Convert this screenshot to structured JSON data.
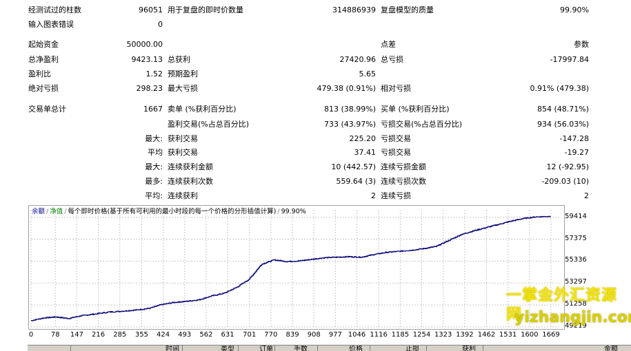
{
  "stats": {
    "bars_tested_label": "经测试过的柱数",
    "bars_tested_value": "96051",
    "ticks_label": "用于复盘的即时价数量",
    "ticks_value": "314886939",
    "quality_label": "复盘模型的质量",
    "quality_value": "99.90%",
    "mismatch_label": "输入图表错误",
    "mismatch_value": "0",
    "initial_deposit_label": "起始资金",
    "initial_deposit_value": "50000.00",
    "spread_label": "点差",
    "spread_value": "参数",
    "net_profit_label": "总净盈利",
    "net_profit_value": "9423.13",
    "gross_profit_label": "总获利",
    "gross_profit_value": "27420.96",
    "gross_loss_label": "总亏损",
    "gross_loss_value": "-17997.84",
    "profit_factor_label": "盈利比",
    "profit_factor_value": "1.52",
    "expected_payoff_label": "预期盈利",
    "expected_payoff_value": "5.65",
    "abs_drawdown_label": "绝对亏损",
    "abs_drawdown_value": "298.23",
    "max_drawdown_label": "最大亏损",
    "max_drawdown_value": "479.38 (0.91%)",
    "rel_drawdown_label": "相对亏损",
    "rel_drawdown_value": "0.91% (479.38)",
    "total_trades_label": "交易单总计",
    "total_trades_value": "1667",
    "short_label": "卖单 (%获利百分比)",
    "short_value": "813 (38.99%)",
    "long_label": "买单 (%获利百分比)",
    "long_value": "854 (48.71%)",
    "profit_trades_label": "盈利交易(%占总百分比)",
    "profit_trades_value": "733 (43.97%)",
    "loss_trades_label": "亏损交易(%占总百分比)",
    "loss_trades_value": "934 (56.03%)",
    "largest_prefix": "最大:",
    "largest_profit_label": "获利交易",
    "largest_profit_value": "225.20",
    "largest_loss_label": "亏损交易",
    "largest_loss_value": "-147.28",
    "average_prefix": "平均",
    "average_profit_label": "获利交易",
    "average_profit_value": "37.41",
    "average_loss_label": "亏损交易",
    "average_loss_value": "-19.27",
    "max_prefix": "最大:",
    "max_consec_wins_label": "连续获利金额",
    "max_consec_wins_value": "10 (442.57)",
    "max_consec_losses_label": "连续亏损金额",
    "max_consec_losses_value": "12 (-92.95)",
    "maximal_prefix": "最多:",
    "maximal_consec_profit_label": "连续获利次数",
    "maximal_consec_profit_value": "559.64 (3)",
    "maximal_consec_loss_label": "连续亏损次数",
    "maximal_consec_loss_value": "-209.03 (10)",
    "avg_prefix": "平均:",
    "avg_consec_wins_label": "连续获利",
    "avg_consec_wins_value": "2",
    "avg_consec_losses_label": "连续亏损",
    "avg_consec_losses_value": "2"
  },
  "chart_header": {
    "legend_balance": "余额",
    "legend_equity": "净值",
    "description": "每个即时价格(基于所有可利用的最小时段的每一个价格的分形插值计算)",
    "quality": "99.90%"
  },
  "colors": {
    "balance_line": "#0a0a78",
    "grid": "#c8c8c8",
    "panel_border": "#a0a0a0"
  },
  "chart_data": {
    "type": "line",
    "series": [
      {
        "name": "余额"
      }
    ],
    "x_ticks": [
      "0",
      "78",
      "147",
      "216",
      "285",
      "355",
      "424",
      "493",
      "562",
      "631",
      "701",
      "770",
      "839",
      "908",
      "977",
      "1046",
      "1116",
      "1185",
      "1254",
      "1323",
      "1392",
      "1462",
      "1531",
      "1600",
      "1669"
    ],
    "y_ticks": [
      "59414",
      "57375",
      "55336",
      "53297",
      "51258",
      "49219"
    ],
    "xlim": [
      0,
      1700
    ],
    "ylim": [
      49219,
      60100
    ],
    "x": [
      0,
      40,
      80,
      120,
      160,
      200,
      250,
      300,
      340,
      380,
      420,
      460,
      500,
      540,
      580,
      620,
      660,
      700,
      740,
      780,
      820,
      860,
      900,
      940,
      980,
      1020,
      1060,
      1100,
      1140,
      1180,
      1220,
      1260,
      1300,
      1340,
      1380,
      1420,
      1460,
      1500,
      1540,
      1580,
      1620,
      1667
    ],
    "y": [
      49800,
      50050,
      50150,
      50000,
      50250,
      50400,
      50600,
      50700,
      50800,
      50950,
      51300,
      51500,
      51600,
      51750,
      52100,
      52350,
      52900,
      53650,
      55050,
      55450,
      55300,
      55350,
      55500,
      55650,
      55700,
      55750,
      55700,
      55950,
      56150,
      56250,
      56350,
      56500,
      56700,
      57250,
      57800,
      58150,
      58450,
      58750,
      59050,
      59300,
      59450,
      59500
    ]
  },
  "watermark": {
    "line1": "一掌金外汇资源网",
    "line2": "yizhangjin.com"
  },
  "table_header": {
    "time": "时间",
    "type": "类型",
    "order": "订单",
    "lots": "手数",
    "price": "价格",
    "sl": "止损",
    "tp": "获利",
    "amount": "金额"
  }
}
